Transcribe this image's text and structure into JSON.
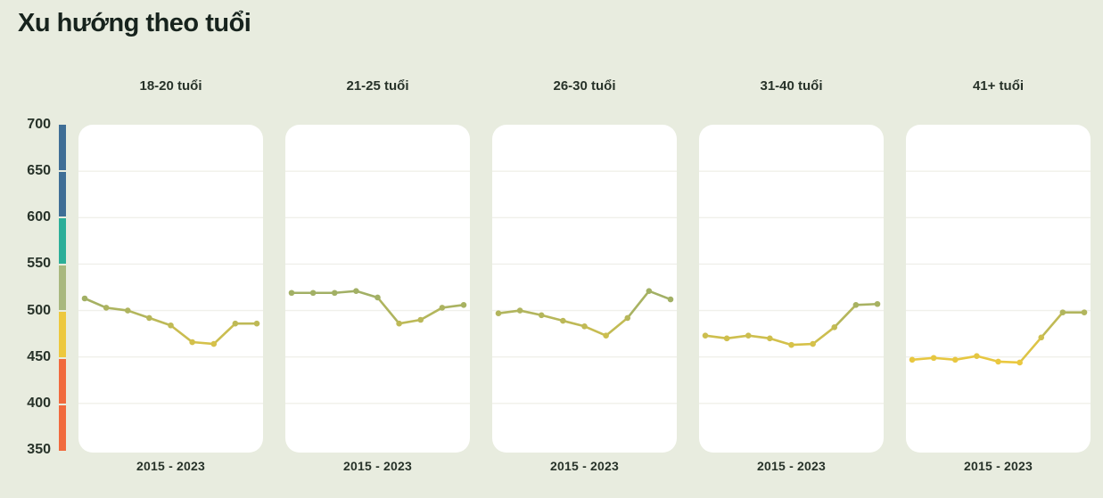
{
  "page": {
    "title": "Xu hướng theo tuổi",
    "background_color": "#e8ecdf",
    "text_color": "#17231d"
  },
  "y_axis": {
    "tick_labels": [
      "700",
      "650",
      "600",
      "550",
      "500",
      "450",
      "400",
      "350"
    ]
  },
  "colorbar": {
    "segment_colors": [
      "#3f6e96",
      "#3f6e96",
      "#2cae98",
      "#a8b87e",
      "#edc83e",
      "#f16a3d",
      "#f16a3d"
    ]
  },
  "chart_data": {
    "type": "line",
    "small_multiples": true,
    "title": "Xu hướng theo tuổi",
    "x": [
      2015,
      2016,
      2017,
      2018,
      2019,
      2020,
      2021,
      2022,
      2023
    ],
    "x_axis_label": "2015 - 2023",
    "ylim": [
      350,
      700
    ],
    "y_ticks": [
      350,
      400,
      450,
      500,
      550,
      600,
      650,
      700
    ],
    "grid": true,
    "grid_color": "#f0f0ea",
    "series": [
      {
        "name": "18-20 tuổi",
        "values": [
          513,
          503,
          500,
          492,
          484,
          466,
          464,
          486,
          486
        ]
      },
      {
        "name": "21-25 tuổi",
        "values": [
          519,
          519,
          519,
          521,
          514,
          486,
          490,
          503,
          506
        ]
      },
      {
        "name": "26-30 tuổi",
        "values": [
          497,
          500,
          495,
          489,
          483,
          473,
          492,
          521,
          512
        ]
      },
      {
        "name": "31-40 tuổi",
        "values": [
          473,
          470,
          473,
          470,
          463,
          464,
          482,
          506,
          507
        ]
      },
      {
        "name": "41+ tuổi",
        "values": [
          447,
          449,
          447,
          451,
          445,
          444,
          471,
          498,
          498
        ]
      }
    ],
    "line_color_scale": {
      "stops": [
        {
          "value": 445,
          "color": "#eac83f"
        },
        {
          "value": 512,
          "color": "#a2b065"
        }
      ]
    },
    "marker_radius": 3.3,
    "line_width": 2.6
  }
}
